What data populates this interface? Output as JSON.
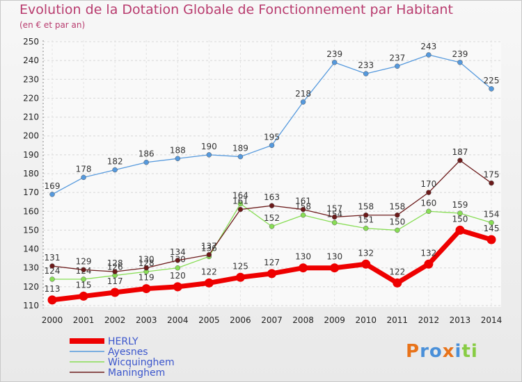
{
  "title": "Evolution de la Dotation Globale de Fonctionnement par Habitant",
  "subtitle": "(en € et par an)",
  "brand": "Proxiti",
  "chart_data": {
    "type": "line",
    "x": [
      "2000",
      "2001",
      "2002",
      "2003",
      "2004",
      "2005",
      "2006",
      "2007",
      "2008",
      "2009",
      "2010",
      "2011",
      "2012",
      "2013",
      "2014"
    ],
    "ylim": [
      110,
      250
    ],
    "yticks": [
      110,
      120,
      130,
      140,
      150,
      160,
      170,
      180,
      190,
      200,
      210,
      220,
      230,
      240,
      250
    ],
    "grid": true,
    "legend_position": "bottom-left",
    "series": [
      {
        "name": "HERLY",
        "color": "#ee0000",
        "values": [
          113,
          115,
          117,
          119,
          120,
          122,
          125,
          127,
          130,
          130,
          132,
          122,
          132,
          150,
          145
        ]
      },
      {
        "name": "Ayesnes",
        "color": "#5599dd",
        "values": [
          169,
          178,
          182,
          186,
          188,
          190,
          189,
          195,
          218,
          239,
          233,
          237,
          243,
          239,
          225
        ]
      },
      {
        "name": "Wicquinghem",
        "color": "#88dd55",
        "values": [
          124,
          124,
          126,
          128,
          130,
          136,
          164,
          152,
          158,
          154,
          151,
          150,
          160,
          159,
          154
        ]
      },
      {
        "name": "Maninghem",
        "color": "#6b1a1a",
        "values": [
          131,
          129,
          128,
          130,
          134,
          137,
          161,
          163,
          161,
          157,
          158,
          158,
          170,
          187,
          175
        ]
      }
    ]
  }
}
